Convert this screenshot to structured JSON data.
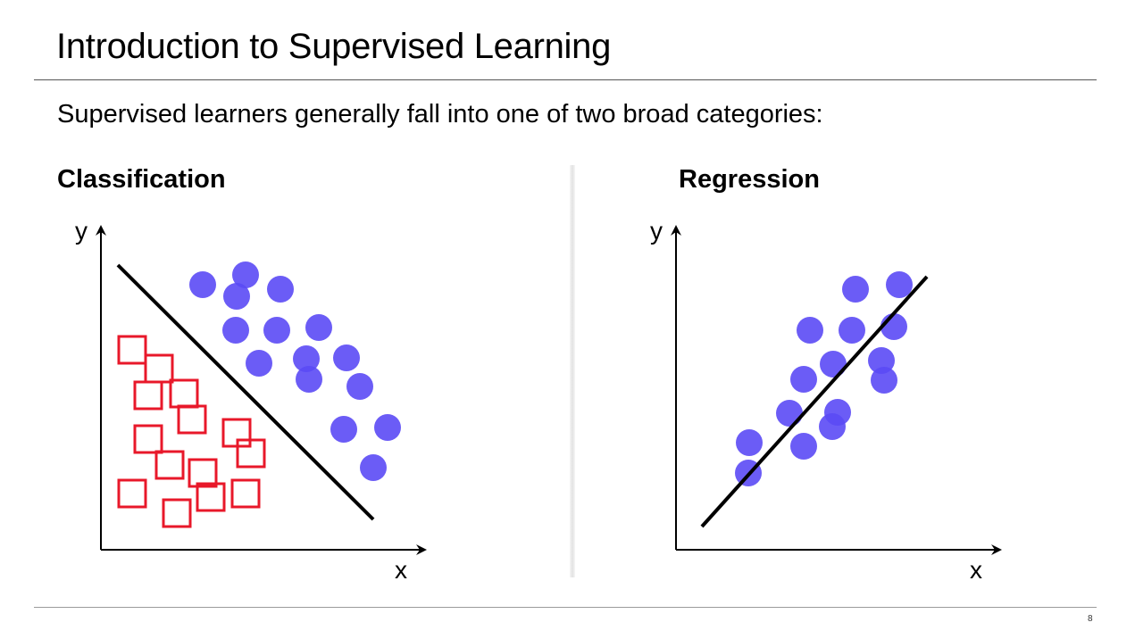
{
  "slide": {
    "title": "Introduction to Supervised Learning",
    "subtitle": "Supervised learners generally fall into one of two broad categories:",
    "page_number": "8"
  },
  "classification": {
    "heading": "Classification",
    "x_label": "x",
    "y_label": "y",
    "colors": {
      "square": "#e8182a",
      "dot": "#5b4af5",
      "line": "#000000"
    },
    "squares": [
      [
        148,
        392
      ],
      [
        178,
        413
      ],
      [
        166,
        443
      ],
      [
        206,
        441
      ],
      [
        215,
        470
      ],
      [
        166,
        492
      ],
      [
        265,
        485
      ],
      [
        281,
        508
      ],
      [
        190,
        521
      ],
      [
        227,
        530
      ],
      [
        148,
        553
      ],
      [
        236,
        557
      ],
      [
        275,
        553
      ],
      [
        198,
        575
      ]
    ],
    "dots": [
      [
        227,
        319
      ],
      [
        275,
        308
      ],
      [
        265,
        332
      ],
      [
        314,
        324
      ],
      [
        264,
        370
      ],
      [
        310,
        370
      ],
      [
        357,
        367
      ],
      [
        290,
        407
      ],
      [
        343,
        402
      ],
      [
        346,
        425
      ],
      [
        388,
        401
      ],
      [
        403,
        433
      ],
      [
        385,
        481
      ],
      [
        434,
        479
      ],
      [
        418,
        524
      ]
    ],
    "boundary": [
      [
        132,
        297
      ],
      [
        418,
        582
      ]
    ]
  },
  "regression": {
    "heading": "Regression",
    "x_label": "x",
    "y_label": "y",
    "colors": {
      "dot": "#5b4af5",
      "line": "#000000"
    },
    "dots": [
      [
        958,
        324
      ],
      [
        1007,
        319
      ],
      [
        907,
        370
      ],
      [
        954,
        370
      ],
      [
        1001,
        366
      ],
      [
        933,
        408
      ],
      [
        987,
        404
      ],
      [
        990,
        426
      ],
      [
        900,
        425
      ],
      [
        884,
        463
      ],
      [
        938,
        462
      ],
      [
        932,
        478
      ],
      [
        839,
        496
      ],
      [
        900,
        500
      ],
      [
        838,
        530
      ]
    ],
    "fit_line": [
      [
        786,
        590
      ],
      [
        1038,
        310
      ]
    ]
  }
}
